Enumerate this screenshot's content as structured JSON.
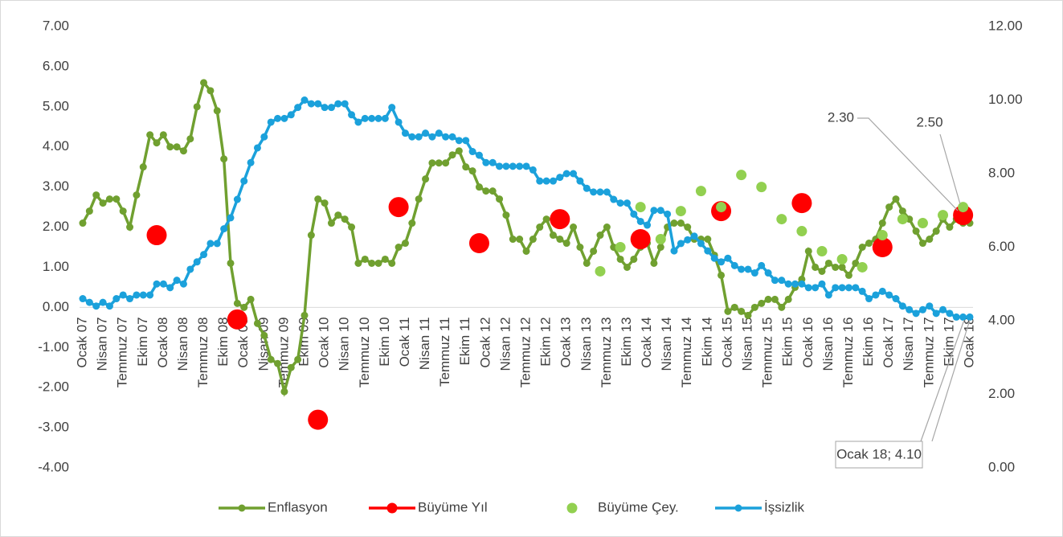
{
  "chart_data": {
    "type": "line",
    "categories": [
      "Ocak 07",
      null,
      null,
      "Nisan 07",
      null,
      null,
      "Temmuz 07",
      null,
      null,
      "Ekim 07",
      null,
      null,
      "Ocak 08",
      null,
      null,
      "Nisan 08",
      null,
      null,
      "Temmuz 08",
      null,
      null,
      "Ekim 08",
      null,
      null,
      "Ocak 09",
      null,
      null,
      "Nisan 09",
      null,
      null,
      "Temmuz 09",
      null,
      null,
      "Ekim 09",
      null,
      null,
      "Ocak 10",
      null,
      null,
      "Nisan 10",
      null,
      null,
      "Temmuz 10",
      null,
      null,
      "Ekim 10",
      null,
      null,
      "Ocak 11",
      null,
      null,
      "Nisan 11",
      null,
      null,
      "Temmuz 11",
      null,
      null,
      "Ekim 11",
      null,
      null,
      "Ocak 12",
      null,
      null,
      "Nisan 12",
      null,
      null,
      "Temmuz 12",
      null,
      null,
      "Ekim 12",
      null,
      null,
      "Ocak 13",
      null,
      null,
      "Nisan 13",
      null,
      null,
      "Temmuz 13",
      null,
      null,
      "Ekim 13",
      null,
      null,
      "Ocak 14",
      null,
      null,
      "Nisan 14",
      null,
      null,
      "Temmuz 14",
      null,
      null,
      "Ekim 14",
      null,
      null,
      "Ocak 15",
      null,
      null,
      "Nisan 15",
      null,
      null,
      "Temmuz 15",
      null,
      null,
      "Ekim 15",
      null,
      null,
      "Ocak 16",
      null,
      null,
      "Nisan 16",
      null,
      null,
      "Temmuz 16",
      null,
      null,
      "Ekim 16",
      null,
      null,
      "Ocak 17",
      null,
      null,
      "Nisan 17",
      null,
      null,
      "Temmuz 17",
      null,
      null,
      "Ekim 17",
      null,
      null,
      "Ocak 18"
    ],
    "series": [
      {
        "name": "Enflasyon",
        "color": "#70a030",
        "type": "line",
        "values": [
          2.1,
          2.4,
          2.8,
          2.6,
          2.7,
          2.7,
          2.4,
          2.0,
          2.8,
          3.5,
          4.3,
          4.1,
          4.3,
          4.0,
          4.0,
          3.9,
          4.2,
          5.0,
          5.6,
          5.4,
          4.9,
          3.7,
          1.1,
          0.1,
          0.0,
          0.2,
          -0.4,
          -0.7,
          -1.3,
          -1.4,
          -2.1,
          -1.5,
          -1.3,
          -0.2,
          1.8,
          2.7,
          2.6,
          2.1,
          2.3,
          2.2,
          2.0,
          1.1,
          1.2,
          1.1,
          1.1,
          1.2,
          1.1,
          1.5,
          1.6,
          2.1,
          2.7,
          3.2,
          3.6,
          3.6,
          3.6,
          3.8,
          3.9,
          3.5,
          3.4,
          3.0,
          2.9,
          2.9,
          2.7,
          2.3,
          1.7,
          1.7,
          1.4,
          1.7,
          2.0,
          2.2,
          1.8,
          1.7,
          1.6,
          2.0,
          1.5,
          1.1,
          1.4,
          1.8,
          2.0,
          1.5,
          1.2,
          1.0,
          1.2,
          1.5,
          1.6,
          1.1,
          1.5,
          2.0,
          2.1,
          2.1,
          2.0,
          1.7,
          1.7,
          1.7,
          1.3,
          0.8,
          -0.1,
          0.0,
          -0.1,
          -0.2,
          0.0,
          0.1,
          0.2,
          0.2,
          0.0,
          0.2,
          0.5,
          0.7,
          1.4,
          1.0,
          0.9,
          1.1,
          1.0,
          1.0,
          0.8,
          1.1,
          1.5,
          1.6,
          1.7,
          2.1,
          2.5,
          2.7,
          2.4,
          2.2,
          1.9,
          1.6,
          1.7,
          1.9,
          2.2,
          2.0,
          2.2,
          2.1,
          2.1
        ]
      },
      {
        "name": "Büyüme Yıl",
        "color": "#ff0000",
        "type": "scatter",
        "values": [
          null,
          null,
          null,
          null,
          null,
          null,
          null,
          null,
          null,
          null,
          null,
          1.8,
          null,
          null,
          null,
          null,
          null,
          null,
          null,
          null,
          null,
          null,
          null,
          -0.3,
          null,
          null,
          null,
          null,
          null,
          null,
          null,
          null,
          null,
          null,
          null,
          -2.8,
          null,
          null,
          null,
          null,
          null,
          null,
          null,
          null,
          null,
          null,
          null,
          2.5,
          null,
          null,
          null,
          null,
          null,
          null,
          null,
          null,
          null,
          null,
          null,
          1.6,
          null,
          null,
          null,
          null,
          null,
          null,
          null,
          null,
          null,
          null,
          null,
          2.2,
          null,
          null,
          null,
          null,
          null,
          null,
          null,
          null,
          null,
          null,
          null,
          1.7,
          null,
          null,
          null,
          null,
          null,
          null,
          null,
          null,
          null,
          null,
          null,
          2.4,
          null,
          null,
          null,
          null,
          null,
          null,
          null,
          null,
          null,
          null,
          null,
          2.6,
          null,
          null,
          null,
          null,
          null,
          null,
          null,
          null,
          null,
          null,
          null,
          1.5,
          null,
          null,
          null,
          null,
          null,
          null,
          null,
          null,
          null,
          null,
          null,
          2.3,
          null
        ]
      },
      {
        "name": "Büyüme Çey.",
        "color": "#92d050",
        "type": "scatter",
        "values": [
          null,
          null,
          null,
          null,
          null,
          null,
          null,
          null,
          null,
          null,
          null,
          null,
          null,
          null,
          null,
          null,
          null,
          null,
          null,
          null,
          null,
          null,
          null,
          null,
          null,
          null,
          null,
          null,
          null,
          null,
          null,
          null,
          null,
          null,
          null,
          null,
          null,
          null,
          null,
          null,
          null,
          null,
          null,
          null,
          null,
          null,
          null,
          null,
          null,
          null,
          null,
          null,
          null,
          null,
          null,
          null,
          null,
          null,
          null,
          null,
          null,
          null,
          null,
          null,
          null,
          null,
          null,
          null,
          null,
          null,
          null,
          null,
          null,
          null,
          null,
          null,
          null,
          0.9,
          null,
          null,
          1.5,
          null,
          null,
          2.5,
          null,
          null,
          1.7,
          null,
          null,
          2.4,
          null,
          null,
          2.9,
          null,
          null,
          2.5,
          null,
          null,
          3.3,
          null,
          null,
          3.0,
          null,
          null,
          2.2,
          null,
          null,
          1.9,
          null,
          null,
          1.4,
          null,
          null,
          1.2,
          null,
          null,
          1.0,
          null,
          null,
          1.8,
          null,
          null,
          2.2,
          null,
          null,
          2.1,
          null,
          null,
          2.3,
          null,
          null,
          2.5,
          null
        ]
      },
      {
        "name": "İşsizlik",
        "color": "#1ba1db",
        "type": "line",
        "axis": "y2",
        "values": [
          4.6,
          4.5,
          4.4,
          4.5,
          4.4,
          4.6,
          4.7,
          4.6,
          4.7,
          4.7,
          4.7,
          5.0,
          5.0,
          4.9,
          5.1,
          5.0,
          5.4,
          5.6,
          5.8,
          6.1,
          6.1,
          6.5,
          6.8,
          7.3,
          7.8,
          8.3,
          8.7,
          9.0,
          9.4,
          9.5,
          9.5,
          9.6,
          9.8,
          10.0,
          9.9,
          9.9,
          9.8,
          9.8,
          9.9,
          9.9,
          9.6,
          9.4,
          9.5,
          9.5,
          9.5,
          9.5,
          9.8,
          9.4,
          9.1,
          9.0,
          9.0,
          9.1,
          9.0,
          9.1,
          9.0,
          9.0,
          8.9,
          8.9,
          8.6,
          8.5,
          8.3,
          8.3,
          8.2,
          8.2,
          8.2,
          8.2,
          8.2,
          8.1,
          7.8,
          7.8,
          7.8,
          7.9,
          8.0,
          8.0,
          7.8,
          7.6,
          7.5,
          7.5,
          7.5,
          7.3,
          7.2,
          7.2,
          6.9,
          6.7,
          6.6,
          7.0,
          7.0,
          6.9,
          5.9,
          6.1,
          6.2,
          6.3,
          6.1,
          5.9,
          5.7,
          5.6,
          5.7,
          5.5,
          5.4,
          5.4,
          5.3,
          5.5,
          5.3,
          5.1,
          5.1,
          5.0,
          5.0,
          5.0,
          4.9,
          4.9,
          5.0,
          4.7,
          4.9,
          4.9,
          4.9,
          4.9,
          4.8,
          4.6,
          4.7,
          4.8,
          4.7,
          4.6,
          4.4,
          4.3,
          4.2,
          4.3,
          4.4,
          4.2,
          4.3,
          4.2,
          4.1,
          4.1,
          4.1
        ]
      }
    ],
    "ylim": [
      -4,
      7
    ],
    "yticks": [
      {
        "value": -4,
        "label": "-4.00"
      },
      {
        "value": -3,
        "label": "-3.00"
      },
      {
        "value": -2,
        "label": "-2.00"
      },
      {
        "value": -1,
        "label": "-1.00"
      },
      {
        "value": 0,
        "label": "0.00"
      },
      {
        "value": 1,
        "label": "1.00"
      },
      {
        "value": 2,
        "label": "2.00"
      },
      {
        "value": 3,
        "label": "3.00"
      },
      {
        "value": 4,
        "label": "4.00"
      },
      {
        "value": 5,
        "label": "5.00"
      },
      {
        "value": 6,
        "label": "6.00"
      },
      {
        "value": 7,
        "label": "7.00"
      }
    ],
    "y2lim": [
      0,
      12
    ],
    "y2ticks": [
      {
        "value": 0,
        "label": "0.00"
      },
      {
        "value": 2,
        "label": "2.00"
      },
      {
        "value": 4,
        "label": "4.00"
      },
      {
        "value": 6,
        "label": "6.00"
      },
      {
        "value": 8,
        "label": "8.00"
      },
      {
        "value": 10,
        "label": "10.00"
      },
      {
        "value": 12,
        "label": "12.00"
      }
    ],
    "grid": false,
    "legend": "bottom",
    "annotations": [
      {
        "text": "2.30"
      },
      {
        "text": "2.50"
      },
      {
        "text": "Ocak 18; 4.10"
      }
    ]
  }
}
